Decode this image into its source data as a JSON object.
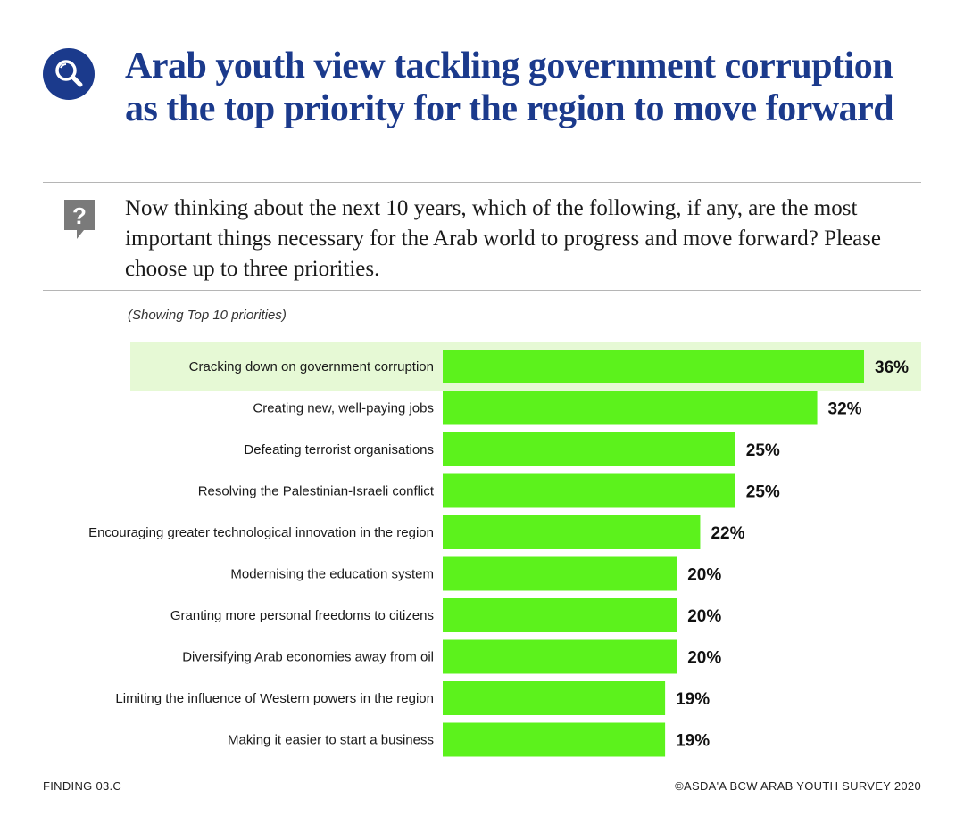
{
  "header": {
    "title": "Arab youth view tackling government corruption as the top priority for the region to move forward",
    "icon": "search-icon"
  },
  "question": {
    "icon": "question-icon",
    "text": "Now thinking about the next 10 years, which of the following, if any, are the most important things necessary for the Arab world to progress and move forward? Please choose up to three priorities."
  },
  "subtitle": "(Showing Top 10 priorities)",
  "colors": {
    "brand": "#1b3a8c",
    "bar": "#5cf21c",
    "highlight": "#e6f9d5",
    "icon_gray": "#7a7a7a"
  },
  "chart_data": {
    "type": "bar",
    "orientation": "horizontal",
    "categories": [
      "Cracking down on government corruption",
      "Creating new, well-paying jobs",
      "Defeating terrorist organisations",
      "Resolving the Palestinian-Israeli conflict",
      "Encouraging greater technological innovation in the region",
      "Modernising the education system",
      "Granting more personal freedoms to citizens",
      "Diversifying Arab economies away from oil",
      "Limiting the influence of Western powers in the region",
      "Making it easier to start a business"
    ],
    "values": [
      36,
      32,
      25,
      25,
      22,
      20,
      20,
      20,
      19,
      19
    ],
    "value_labels": [
      "36%",
      "32%",
      "25%",
      "25%",
      "22%",
      "20%",
      "20%",
      "20%",
      "19%",
      "19%"
    ],
    "highlighted_index": 0,
    "grid": false,
    "legend": "none"
  },
  "footer": {
    "finding": "FINDING 03.C",
    "source": "©ASDA'A BCW ARAB YOUTH SURVEY 2020"
  }
}
